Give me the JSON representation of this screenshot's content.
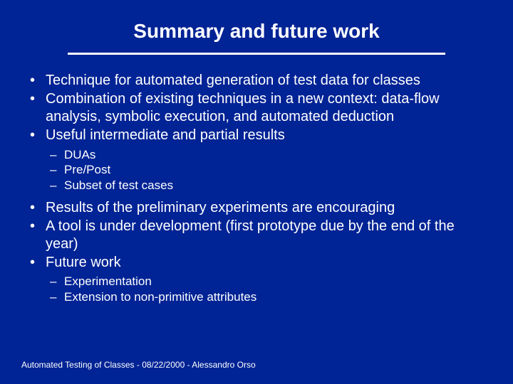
{
  "background_color": "#002395",
  "text_color": "#ffffff",
  "divider_color": "#ffffff",
  "title_fontsize": 28,
  "bullet_fontsize": 20,
  "subbullet_fontsize": 17,
  "footer_fontsize": 12,
  "title": "Summary and future work",
  "bullets": [
    {
      "text": "Technique for automated generation of test data for classes"
    },
    {
      "text": "Combination of existing techniques in a new context: data-flow analysis, symbolic execution, and automated deduction"
    },
    {
      "text": "Useful intermediate and partial results",
      "sub": [
        "DUAs",
        "Pre/Post",
        "Subset of test cases"
      ]
    },
    {
      "text": "Results of the preliminary experiments are encouraging"
    },
    {
      "text": "A tool is under development (first prototype due by the end of the year)"
    },
    {
      "text": "Future work",
      "sub": [
        "Experimentation",
        "Extension to non-primitive attributes"
      ]
    }
  ],
  "footer": "Automated Testing of Classes  -  08/22/2000  -  Alessandro Orso"
}
